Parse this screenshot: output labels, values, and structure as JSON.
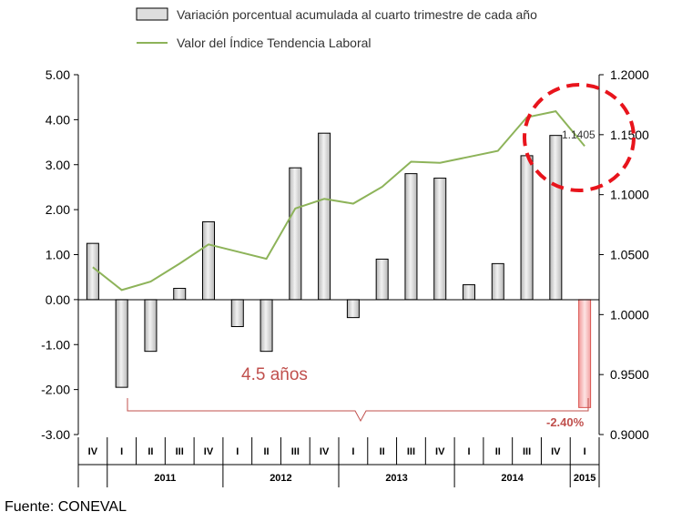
{
  "chart_data": {
    "type": "bar+line",
    "legend": {
      "bars": "Variación porcentual  acumulada al cuarto trimestre de cada año",
      "line": "Valor del Índice Tendencia Laboral"
    },
    "quarters": [
      "IV",
      "I",
      "II",
      "III",
      "IV",
      "I",
      "II",
      "III",
      "IV",
      "I",
      "II",
      "III",
      "IV",
      "I",
      "II",
      "III",
      "IV",
      "I"
    ],
    "years": [
      {
        "label": "2011",
        "start": 1,
        "end": 4
      },
      {
        "label": "2012",
        "start": 5,
        "end": 8
      },
      {
        "label": "2013",
        "start": 9,
        "end": 12
      },
      {
        "label": "2014",
        "start": 13,
        "end": 16
      },
      {
        "label": "2015",
        "start": 17,
        "end": 17
      }
    ],
    "bar_values": [
      1.25,
      -1.95,
      -1.15,
      0.25,
      1.73,
      -0.6,
      -1.15,
      2.93,
      3.7,
      -0.4,
      0.9,
      2.8,
      2.7,
      0.33,
      0.8,
      3.2,
      3.65,
      -2.4
    ],
    "line_values": [
      1.0395,
      1.0205,
      1.0275,
      1.0425,
      1.0585,
      1.0525,
      1.0465,
      1.0885,
      1.0965,
      1.0925,
      1.1065,
      1.1275,
      1.1265,
      1.1315,
      1.1365,
      1.1645,
      1.1695,
      1.1405
    ],
    "left_axis": {
      "min": -3,
      "max": 5,
      "step": 1,
      "tick_labels": [
        "-3.00",
        "-2.00",
        "-1.00",
        "0.00",
        "1.00",
        "2.00",
        "3.00",
        "4.00",
        "5.00"
      ]
    },
    "right_axis": {
      "min": 0.9,
      "max": 1.2,
      "step": 0.05,
      "tick_labels": [
        "0.9000",
        "0.9500",
        "1.0000",
        "1.0500",
        "1.1000",
        "1.1500",
        "1.2000"
      ]
    },
    "colors": {
      "bar_fill": "#dedede",
      "bar_last_fill": "#f4b8b8",
      "bar_last_stroke": "#d9534f",
      "line": "#8db359",
      "annotation": "#c0504d",
      "circle": "#e8141c"
    },
    "annotations": {
      "last_line_value": "1.1405",
      "last_bar_value": "-2.40%",
      "span_label": "4.5 años"
    },
    "source": "Fuente: CONEVAL"
  }
}
